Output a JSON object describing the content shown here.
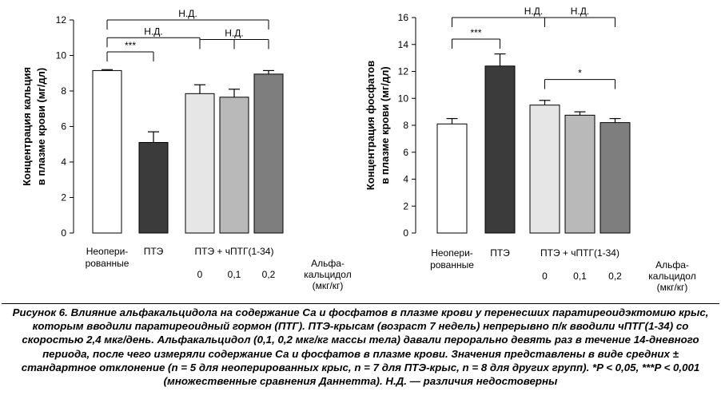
{
  "chart_data": [
    {
      "type": "bar",
      "title": "",
      "ylabel_lines": [
        "Концентрация кальция",
        "в плазме крови (мг/дл)"
      ],
      "ylim": [
        0,
        12
      ],
      "yticks": [
        0,
        2,
        4,
        6,
        8,
        10,
        12
      ],
      "grid": false,
      "bars": [
        {
          "value": 9.15,
          "error": 0.05,
          "color": "#ffffff"
        },
        {
          "value": 5.1,
          "error": 0.6,
          "color": "#3b3b3b"
        },
        {
          "value": 7.85,
          "error": 0.5,
          "color": "#e6e6e6"
        },
        {
          "value": 7.65,
          "error": 0.45,
          "color": "#b9b9b9"
        },
        {
          "value": 8.95,
          "error": 0.2,
          "color": "#7e7e7e"
        }
      ],
      "category_labels": [
        {
          "lines": [
            "Неопери-",
            "рованные"
          ],
          "bars": [
            0
          ]
        },
        {
          "lines": [
            "ПТЭ"
          ],
          "bars": [
            1
          ]
        },
        {
          "lines": [
            "ПТЭ + чПТГ(1-34)"
          ],
          "bars": [
            2,
            3,
            4
          ]
        }
      ],
      "dose_labels": [
        "0",
        "0,1",
        "0,2"
      ],
      "dose_title_lines": [
        "Альфа-",
        "кальцидол",
        "(мкг/кг)"
      ],
      "significance": [
        {
          "label": "Н.Д.",
          "from": 0,
          "to": [
            4
          ],
          "y": 12.0
        },
        {
          "label": "Н.Д.",
          "from": 0,
          "to": [
            2
          ],
          "y": 11.0
        },
        {
          "label": "***",
          "from": 0,
          "to": [
            1
          ],
          "y": 10.2
        },
        {
          "label": "Н.Д.",
          "from": 2,
          "to": [
            3,
            4
          ],
          "y": 10.9
        }
      ]
    },
    {
      "type": "bar",
      "title": "",
      "ylabel_lines": [
        "Концентрация фосфатов",
        "в плазме крови (мг/дл)"
      ],
      "ylim": [
        0,
        16
      ],
      "yticks": [
        0,
        2,
        4,
        6,
        8,
        10,
        12,
        14,
        16
      ],
      "grid": false,
      "bars": [
        {
          "value": 8.1,
          "error": 0.4,
          "color": "#ffffff"
        },
        {
          "value": 12.4,
          "error": 0.9,
          "color": "#3b3b3b"
        },
        {
          "value": 9.5,
          "error": 0.35,
          "color": "#e6e6e6"
        },
        {
          "value": 8.75,
          "error": 0.25,
          "color": "#b9b9b9"
        },
        {
          "value": 8.2,
          "error": 0.3,
          "color": "#7e7e7e"
        }
      ],
      "category_labels": [
        {
          "lines": [
            "Неопери-",
            "рованные"
          ],
          "bars": [
            0
          ]
        },
        {
          "lines": [
            "ПТЭ"
          ],
          "bars": [
            1
          ]
        },
        {
          "lines": [
            "ПТЭ + чПТГ(1-34)"
          ],
          "bars": [
            2,
            3,
            4
          ]
        }
      ],
      "dose_labels": [
        "0",
        "0,1",
        "0,2"
      ],
      "dose_title_lines": [
        "Альфа-",
        "кальцидол",
        "(мкг/кг)"
      ],
      "significance": [
        {
          "label": "Н.Д.",
          "from": 0,
          "to": [
            4
          ],
          "y": 16.0
        },
        {
          "label": "Н.Д.",
          "from": 2,
          "to": [
            4
          ],
          "y": 16.0
        },
        {
          "label": "***",
          "from": 0,
          "to": [
            1
          ],
          "y": 14.4
        },
        {
          "label": "*",
          "from": 2,
          "to": [
            4
          ],
          "y": 11.4
        }
      ]
    }
  ],
  "caption": {
    "lead": "Рисунок 6.",
    "parts": [
      {
        "t": " Влияние альфакальцидола на содержание Са и фосфатов в плазме крови у перенесших паратиреоидэктомию крыс, которым вводили паратиреоидный гормон (ПТГ). ПТЭ-крысам (возраст 7 недель) непрерывно п/к вводили чПТГ(1-34) со скоростью 2,4 мкг/день. Альфакальцидол (0,1, 0,2 мкг/кг массы тела) давали перорально девять раз в течение 14-дневного периода, после чего измеряли содержание Са и фосфатов в плазме крови. Значения представлены в виде средних ± стандартное отклонение (n = 5 для неоперированных крыс, n = 7 для ПТЭ-крыс, n = 8 для других групп). *",
        "ital": false
      },
      {
        "t": "P",
        "ital": true
      },
      {
        "t": " < 0,05, ***",
        "ital": false
      },
      {
        "t": "P",
        "ital": true
      },
      {
        "t": " < 0,001 (множественные сравнения Даннетта). Н.Д. — различия недостоверны",
        "ital": false
      }
    ]
  }
}
